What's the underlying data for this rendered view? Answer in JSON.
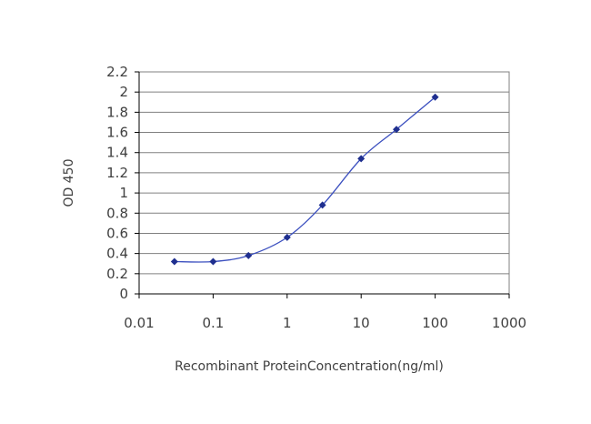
{
  "chart_data": {
    "type": "line",
    "title": "",
    "xlabel": "Recombinant ProteinConcentration(ng/ml)",
    "ylabel": "OD 450",
    "x_scale": "log",
    "xlim": [
      0.01,
      1000
    ],
    "ylim": [
      0,
      2.2
    ],
    "x_ticks": [
      "0.01",
      "0.1",
      "1",
      "10",
      "100",
      "1000"
    ],
    "y_ticks": [
      "0",
      "0.2",
      "0.4",
      "0.6",
      "0.8",
      "1",
      "1.2",
      "1.4",
      "1.6",
      "1.8",
      "2",
      "2.2"
    ],
    "grid": "horizontal",
    "legend": "none",
    "series": [
      {
        "x": [
          0.03,
          0.1,
          0.3,
          1,
          3,
          10,
          30,
          100
        ],
        "y": [
          0.32,
          0.32,
          0.38,
          0.56,
          0.88,
          1.34,
          1.63,
          1.95
        ],
        "color": "#3B4FBF",
        "marker": "diamond",
        "marker_color": "#1F2F8F"
      }
    ],
    "colors": {
      "grid": "#808080",
      "axis": "#000000",
      "text": "#404040"
    }
  }
}
